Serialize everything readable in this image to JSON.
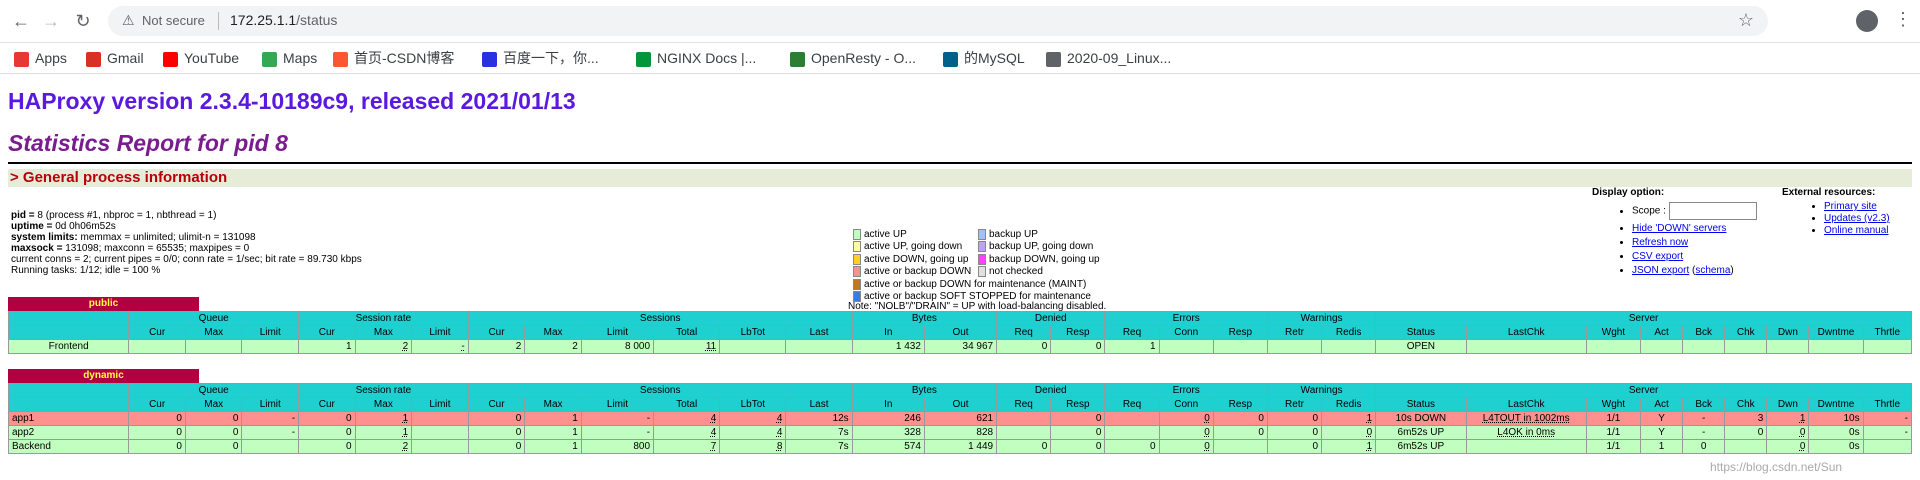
{
  "browser": {
    "warn_icon": "alert-triangle-icon",
    "not_secure": "Not secure",
    "url_host": "172.25.1.1",
    "url_path": "/status",
    "bookmarks": [
      {
        "label": "Apps",
        "icon": "apps-grid-icon",
        "color": "#e53935"
      },
      {
        "label": "Gmail",
        "icon": "gmail-icon",
        "color": "#d93025"
      },
      {
        "label": "YouTube",
        "icon": "youtube-icon",
        "color": "#ff0000"
      },
      {
        "label": "Maps",
        "icon": "maps-icon",
        "color": "#34a853"
      },
      {
        "label": "首页-CSDN博客",
        "icon": "csdn-icon",
        "color": "#fc5531"
      },
      {
        "label": "百度一下，你...",
        "icon": "baidu-icon",
        "color": "#2932e1"
      },
      {
        "label": "NGINX Docs |...",
        "icon": "nginx-icon",
        "color": "#009639"
      },
      {
        "label": "OpenResty - O...",
        "icon": "openresty-icon",
        "color": "#2d7d32"
      },
      {
        "label": "的MySQL",
        "icon": "mysql-icon",
        "color": "#00618a"
      },
      {
        "label": "2020-09_Linux...",
        "icon": "globe-icon",
        "color": "#5f6368"
      }
    ]
  },
  "page": {
    "title": "HAProxy version 2.3.4-10189c9, released 2021/01/13",
    "subtitle": "Statistics Report for pid 8",
    "section": "> General process information",
    "proc_lines": [
      {
        "k": "pid = ",
        "v": "8 (process #1, nbproc = 1, nbthread = 1)"
      },
      {
        "k": "uptime = ",
        "v": "0d 0h06m52s"
      },
      {
        "k": "system limits: ",
        "v": "memmax = unlimited; ulimit-n = 131098"
      },
      {
        "k": "maxsock = ",
        "v": "131098; maxconn = 65535; maxpipes = 0"
      },
      {
        "k": "",
        "v": "current conns = 2; current pipes = 0/0; conn rate = 1/sec; bit rate = 89.730 kbps"
      },
      {
        "k": "",
        "v": "Running tasks: 1/12; idle = 100 %"
      }
    ],
    "legend": [
      {
        "label": "active UP",
        "color": "#c0ffc0"
      },
      {
        "label": "active UP, going down",
        "color": "#ffffa0"
      },
      {
        "label": "active DOWN, going up",
        "color": "#ffd020"
      },
      {
        "label": "active or backup DOWN",
        "color": "#ff9090"
      },
      {
        "label": "active or backup DOWN for maintenance (MAINT)",
        "color": "#c07820"
      },
      {
        "label": "active or backup SOFT STOPPED for maintenance",
        "color": "#3080e0"
      },
      {
        "label": "backup UP",
        "color": "#a0c0ff"
      },
      {
        "label": "backup UP, going down",
        "color": "#c0a0ff"
      },
      {
        "label": "backup DOWN, going up",
        "color": "#ff40ff"
      },
      {
        "label": "not checked",
        "color": "#e0e0e0"
      }
    ],
    "legend_note": "Note: \"NOLB\"/\"DRAIN\" = UP with load-balancing disabled.",
    "display_title": "Display option:",
    "scope_label": "Scope :",
    "display_links": [
      "Hide 'DOWN' servers",
      "Refresh now",
      "CSV export"
    ],
    "json_export": "JSON export",
    "schema": "schema",
    "external_title": "External resources:",
    "external_links": [
      "Primary site",
      "Updates (v2.3)",
      "Online manual"
    ]
  },
  "headers": {
    "groups": [
      "Queue",
      "Session rate",
      "Sessions",
      "Bytes",
      "Denied",
      "Errors",
      "Warnings",
      "Server"
    ],
    "cols": [
      "Cur",
      "Max",
      "Limit",
      "Cur",
      "Max",
      "Limit",
      "Cur",
      "Max",
      "Limit",
      "Total",
      "LbTot",
      "Last",
      "In",
      "Out",
      "Req",
      "Resp",
      "Req",
      "Conn",
      "Resp",
      "Retr",
      "Redis",
      "Status",
      "LastChk",
      "Wght",
      "Act",
      "Bck",
      "Chk",
      "Dwn",
      "Dwntme",
      "Thrtle"
    ]
  },
  "public": {
    "name": "public",
    "rows": [
      {
        "cls": "frontend",
        "cells": [
          "Frontend",
          "",
          "",
          "",
          "1",
          "2",
          "-",
          "2",
          "2",
          "8 000",
          "11",
          "",
          "",
          "1 432",
          "34 967",
          "0",
          "0",
          "1",
          "",
          "",
          "",
          "",
          "OPEN",
          "",
          "",
          "",
          "",
          "",
          "",
          "",
          ""
        ]
      }
    ]
  },
  "dynamic": {
    "name": "dynamic",
    "rows": [
      {
        "cls": "srv-down",
        "cells": [
          "app1",
          "0",
          "0",
          "-",
          "0",
          "1",
          "",
          "0",
          "1",
          "-",
          "4",
          "4",
          "12s",
          "246",
          "621",
          "",
          "0",
          "",
          "0",
          "0",
          "0",
          "1",
          "10s DOWN",
          "L4TOUT in 1002ms",
          "1/1",
          "Y",
          "-",
          "3",
          "1",
          "10s",
          "-"
        ]
      },
      {
        "cls": "srv-up",
        "cells": [
          "app2",
          "0",
          "0",
          "-",
          "0",
          "1",
          "",
          "0",
          "1",
          "-",
          "4",
          "4",
          "7s",
          "328",
          "828",
          "",
          "0",
          "",
          "0",
          "0",
          "0",
          "0",
          "6m52s UP",
          "L4OK in 0ms",
          "1/1",
          "Y",
          "-",
          "0",
          "0",
          "0s",
          "-"
        ]
      },
      {
        "cls": "backend",
        "cells": [
          "Backend",
          "0",
          "0",
          "",
          "0",
          "2",
          "",
          "0",
          "1",
          "800",
          "7",
          "8",
          "7s",
          "574",
          "1 449",
          "0",
          "0",
          "0",
          "0",
          "",
          "0",
          "1",
          "6m52s UP",
          "",
          "1/1",
          "1",
          "0",
          "",
          "0",
          "0s",
          ""
        ]
      }
    ]
  },
  "watermark": "https://blog.csdn.net/Sun"
}
